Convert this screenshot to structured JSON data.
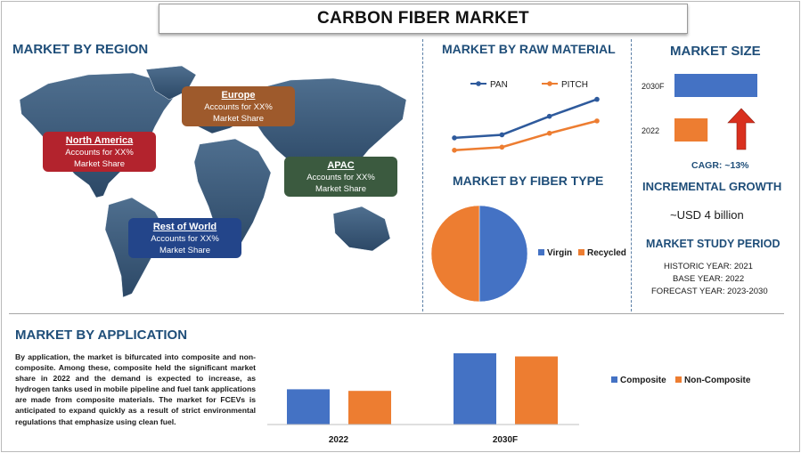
{
  "title": "CARBON FIBER MARKET",
  "region": {
    "heading": "MARKET BY REGION",
    "callouts": [
      {
        "name": "Europe",
        "text": "Accounts for XX%",
        "text2": "Market Share",
        "color": "#9e5a2c"
      },
      {
        "name": "North America",
        "text": "Accounts for XX%",
        "text2": "Market Share",
        "color": "#b3232d"
      },
      {
        "name": "APAC",
        "text": "Accounts for XX%",
        "text2": "Market Share",
        "color": "#3b5a3f"
      },
      {
        "name": "Rest of World",
        "text": "Accounts for XX%",
        "text2": "Market Share",
        "color": "#23458a"
      }
    ]
  },
  "raw_material": {
    "heading": "MARKET BY RAW MATERIAL"
  },
  "fiber_type": {
    "heading": "MARKET BY FIBER TYPE"
  },
  "market_size": {
    "heading": "MARKET SIZE",
    "cagr_label": "CAGR:",
    "cagr_value": "~13%",
    "incremental_heading": "INCREMENTAL GROWTH",
    "incremental_value": "~USD 4 billion",
    "study_heading": "MARKET STUDY PERIOD",
    "historic": "HISTORIC YEAR: 2021",
    "base": "BASE YEAR: 2022",
    "forecast": "FORECAST YEAR: 2023-2030"
  },
  "application": {
    "heading": "MARKET BY APPLICATION",
    "description": "By application, the market is bifurcated into composite and non-composite. Among these, composite held the significant market share in 2022 and the demand is expected to increase, as hydrogen tanks used in mobile pipeline and fuel tank applications are made from composite materials. The market for FCEVs is anticipated to expand quickly as a result of strict environmental regulations that emphasize using clean fuel."
  },
  "colors": {
    "blue": "#4472c4",
    "orange": "#ed7d31",
    "navy": "#1f4e79"
  },
  "chart_data": [
    {
      "type": "line",
      "id": "raw-material",
      "x": [
        "1",
        "2",
        "3",
        "4"
      ],
      "series": [
        {
          "name": "PAN",
          "values": [
            2.6,
            2.8,
            4.0,
            5.1
          ],
          "color": "#2e5a9c"
        },
        {
          "name": "PITCH",
          "values": [
            1.8,
            2.0,
            2.9,
            3.7
          ],
          "color": "#ed7d31"
        }
      ],
      "ylim": [
        0,
        6
      ],
      "legend": "top"
    },
    {
      "type": "pie",
      "id": "fiber-type",
      "labels": [
        "Virgin",
        "Recycled"
      ],
      "values": [
        50,
        50
      ],
      "colors": [
        "#4472c4",
        "#ed7d31"
      ],
      "legend": "right"
    },
    {
      "type": "bar",
      "id": "market-size",
      "orientation": "horizontal",
      "categories": [
        "2030F",
        "2022"
      ],
      "values": [
        100,
        40
      ],
      "colors": [
        "#4472c4",
        "#ed7d31"
      ]
    },
    {
      "type": "bar",
      "id": "application",
      "categories": [
        "2022",
        "2030F"
      ],
      "series": [
        {
          "name": "Composite",
          "values": [
            44,
            89
          ],
          "color": "#4472c4"
        },
        {
          "name": "Non-Composite",
          "values": [
            42,
            85
          ],
          "color": "#ed7d31"
        }
      ],
      "ylim": [
        0,
        100
      ],
      "legend": "right"
    }
  ]
}
